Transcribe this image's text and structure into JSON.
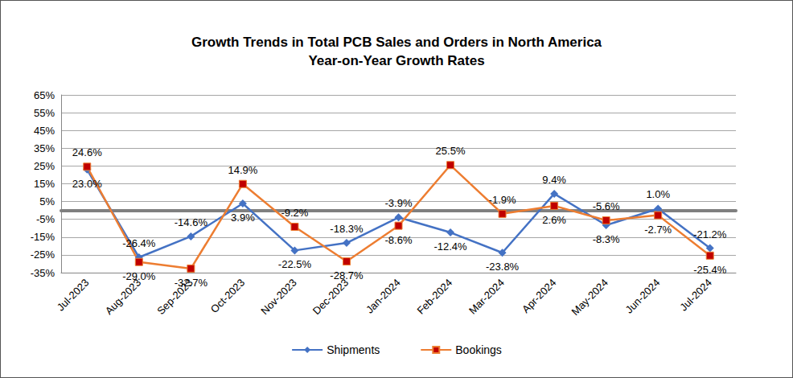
{
  "chart_data": {
    "type": "line",
    "title": "Growth Trends in Total PCB Sales and Orders in North America",
    "subtitle": "Year-on-Year Growth Rates",
    "categories": [
      "Jul-2023",
      "Aug-2023",
      "Sep-2023",
      "Oct-2023",
      "Nov-2023",
      "Dec-2023",
      "Jan-2024",
      "Feb-2024",
      "Mar-2024",
      "Apr-2024",
      "May-2024",
      "Jun-2024",
      "Jul-2024"
    ],
    "series": [
      {
        "name": "Shipments",
        "color": "#4472C4",
        "marker": "diamond",
        "line_style": "solid",
        "values": [
          23.0,
          -26.4,
          -14.6,
          3.9,
          -22.5,
          -18.3,
          -3.9,
          -12.4,
          -23.8,
          9.4,
          -8.3,
          1.0,
          -21.2
        ],
        "value_labels": [
          "23.0%",
          "-26.4%",
          "-14.6%",
          "3.9%",
          "-22.5%",
          "-18.3%",
          "-3.9%",
          "-12.4%",
          "-23.8%",
          "9.4%",
          "-8.3%",
          "1.0%",
          "-21.2%"
        ]
      },
      {
        "name": "Bookings",
        "color": "#ED7D31",
        "marker": "square",
        "line_style": "solid",
        "values": [
          24.6,
          -29.0,
          -32.7,
          14.9,
          -9.2,
          -28.7,
          -8.6,
          25.5,
          -1.9,
          2.6,
          -5.6,
          -2.7,
          -25.4
        ],
        "value_labels": [
          "24.6%",
          "-29.0%",
          "-32.7%",
          "14.9%",
          "-9.2%",
          "-28.7%",
          "-8.6%",
          "25.5%",
          "-1.9%",
          "2.6%",
          "-5.6%",
          "-2.7%",
          "-25.4%"
        ]
      }
    ],
    "ylim": [
      -35,
      65
    ],
    "yticks": [
      {
        "value": -35,
        "label": "-35%"
      },
      {
        "value": -25,
        "label": "-25%"
      },
      {
        "value": -15,
        "label": "-15%"
      },
      {
        "value": -5,
        "label": "-5%"
      },
      {
        "value": 5,
        "label": "5%"
      },
      {
        "value": 15,
        "label": "15%"
      },
      {
        "value": 25,
        "label": "25%"
      },
      {
        "value": 35,
        "label": "35%"
      },
      {
        "value": 45,
        "label": "45%"
      },
      {
        "value": 55,
        "label": "55%"
      },
      {
        "value": 65,
        "label": "65%"
      }
    ],
    "grid": true,
    "legend": "bottom",
    "data_labels": true
  }
}
